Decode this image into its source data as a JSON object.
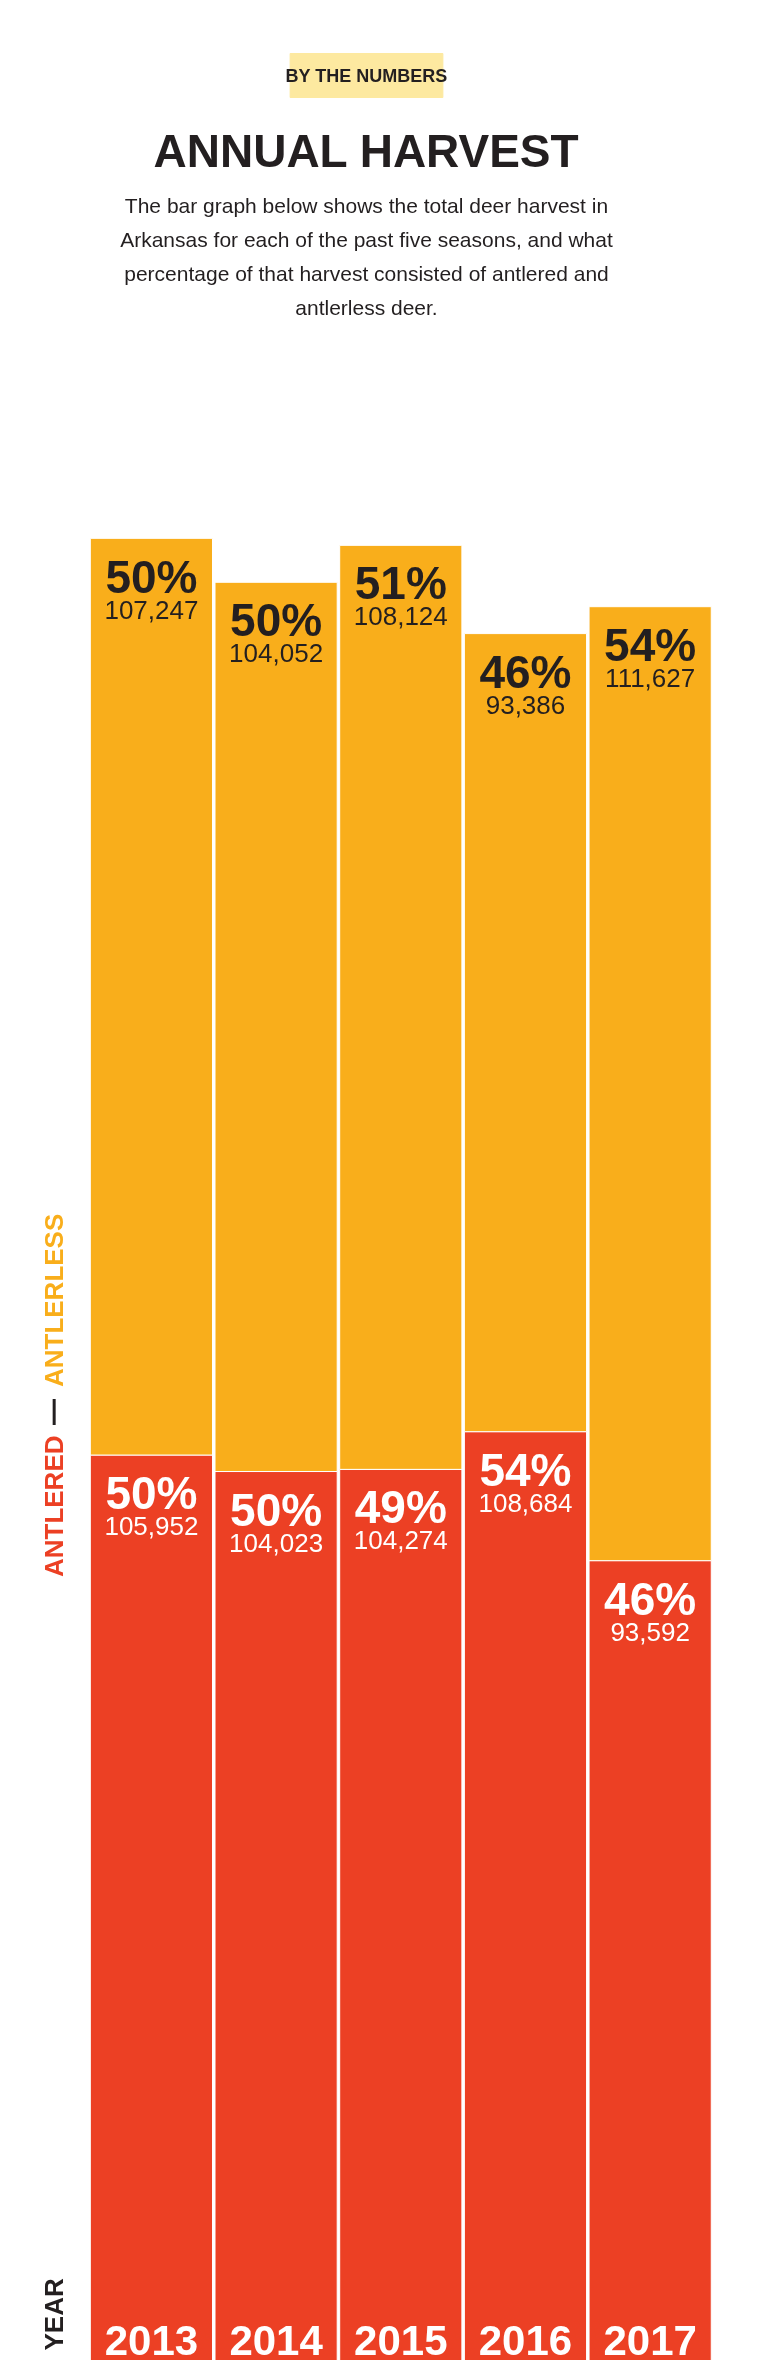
{
  "chart_data": {
    "type": "bar",
    "stacked": true,
    "title": "ANNUAL HARVEST",
    "subtitle": "The bar graph below shows the total deer harvest in Arkansas for each of the past five seasons, and what percentage of that harvest consisted of antlered and antlerless deer.",
    "categories": [
      "2013",
      "2014",
      "2015",
      "2016",
      "2017"
    ],
    "annotations": [
      "BY THE NUMBERS",
      "YEAR",
      {
        "text": "50%",
        "x": "2013",
        "y": 105952
      },
      {
        "text": "50%",
        "x": "2014",
        "y": 104023
      },
      {
        "text": "49%",
        "x": "2015",
        "y": 104274
      },
      {
        "text": "54%",
        "x": "2016",
        "y": 108684
      },
      {
        "text": "46%",
        "x": "2017",
        "y": 93592
      },
      {
        "text": "50%",
        "x": "2013",
        "y": 213199
      },
      {
        "text": "50%",
        "x": "2014",
        "y": 208075
      },
      {
        "text": "51%",
        "x": "2015",
        "y": 212398
      },
      {
        "text": "46%",
        "x": "2016",
        "y": 202070
      },
      {
        "text": "54%",
        "x": "2017",
        "y": 205219
      }
    ],
    "series": [
      {
        "name": "ANTLERED",
        "color": "#ec4024",
        "values": [
          105952,
          104023,
          104274,
          108684,
          93592
        ],
        "value_labels": [
          "105,952",
          "104,023",
          "104,274",
          "108,684",
          "93,592"
        ]
      },
      {
        "name": "ANTLERLESS",
        "color": "#f9ae1b",
        "values": [
          107247,
          104052,
          108124,
          93386,
          111627
        ],
        "value_labels": [
          "107,247",
          "104,052",
          "108,124",
          "93,386",
          "111,627"
        ]
      }
    ]
  }
}
